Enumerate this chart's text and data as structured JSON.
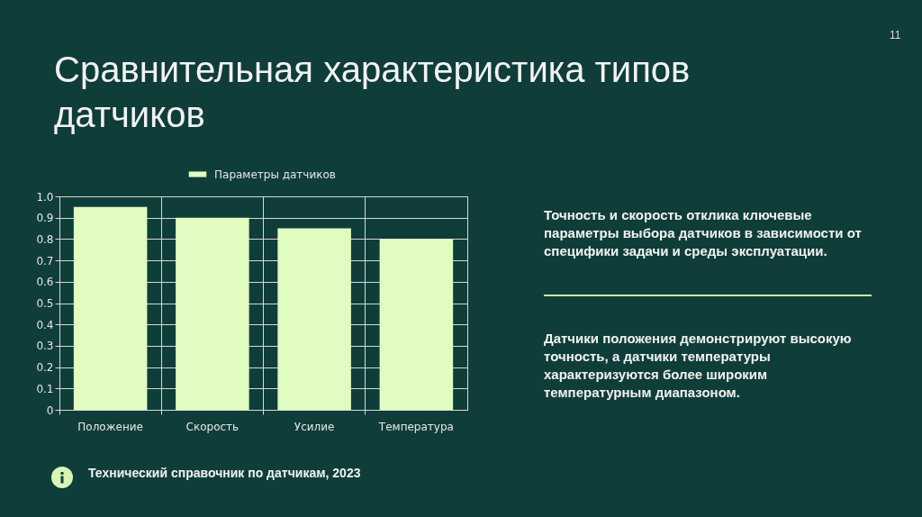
{
  "chart_data": {
    "type": "bar",
    "title": "Сравнительная характеристика типов датчиков",
    "categories": [
      "Положение",
      "Скорость",
      "Усилие",
      "Температура"
    ],
    "series": [
      {
        "name": "Параметры датчиков",
        "color": "#e0fcc0",
        "values": [
          0.95,
          0.9,
          0.85,
          0.8
        ]
      }
    ],
    "ylim": [
      0,
      1
    ],
    "yticks": [
      0,
      0.1,
      0.2,
      0.3,
      0.4,
      0.5,
      0.6,
      0.7,
      0.8,
      0.9,
      {
        "value": 1,
        "label": "1.0"
      }
    ],
    "grid": true,
    "legend": "top",
    "annotations": [
      "Точность и скорость отклика ключевые параметры выбора датчиков в зависимости от специфики задачи и среды эксплуатации.",
      "Датчики положения демонстрируют высокую точность, а датчики температуры характеризуются более широким температурным диапазоном.",
      "Технический справочник по датчикам, 2023",
      "11"
    ]
  }
}
